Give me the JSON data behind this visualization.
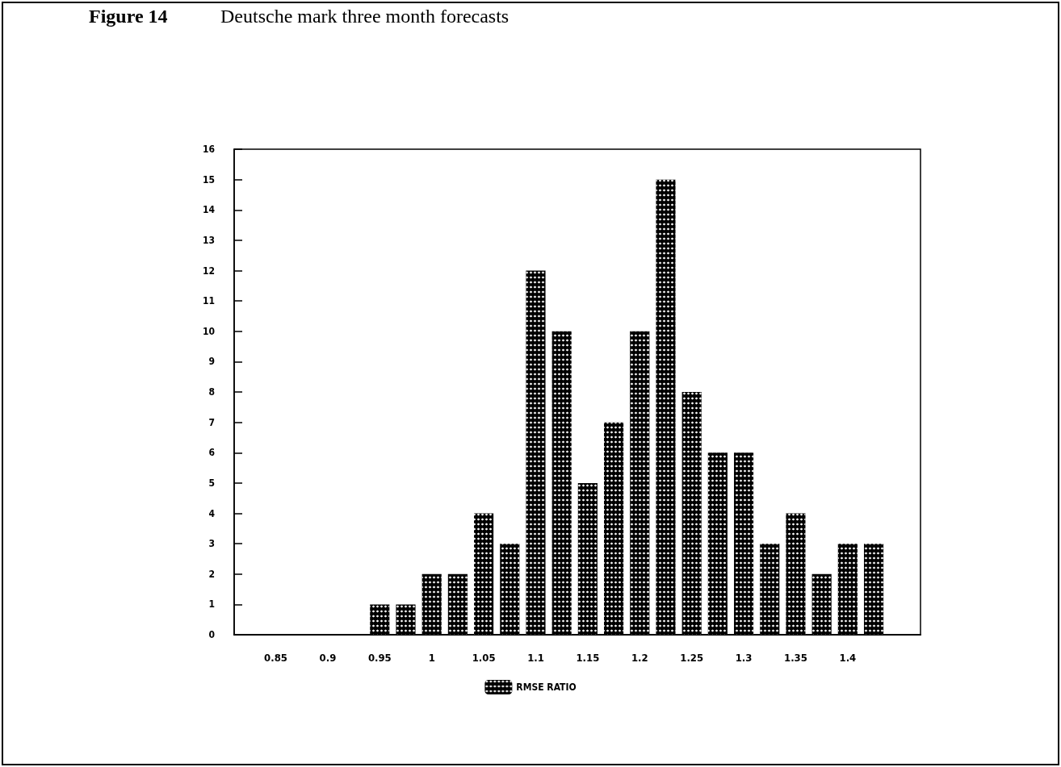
{
  "chart_data": {
    "type": "bar",
    "title": "Figure 14",
    "subtitle": "Deutsche mark three month forecasts",
    "x": [
      0.95,
      0.975,
      1,
      1.025,
      1.05,
      1.075,
      1.1,
      1.125,
      1.15,
      1.175,
      1.2,
      1.225,
      1.25,
      1.275,
      1.3,
      1.325,
      1.35,
      1.375,
      1.4,
      1.425
    ],
    "series": [
      {
        "name": "RMSE RATIO",
        "color": "#000000",
        "values": [
          1,
          1,
          2,
          2,
          4,
          3,
          12,
          10,
          5,
          7,
          10,
          15,
          8,
          6,
          6,
          3,
          4,
          2,
          3,
          3
        ]
      }
    ],
    "xlim": [
      0.81,
      1.47
    ],
    "xticks": [
      0.85,
      0.9,
      0.95,
      1,
      1.05,
      1.1,
      1.15,
      1.2,
      1.25,
      1.3,
      1.35,
      1.4
    ],
    "ylim": [
      0,
      16
    ],
    "yticks": [
      0,
      1,
      2,
      3,
      4,
      5,
      6,
      7,
      8,
      9,
      10,
      11,
      12,
      13,
      14,
      15,
      16
    ],
    "grid": false,
    "legend": "bottom"
  }
}
